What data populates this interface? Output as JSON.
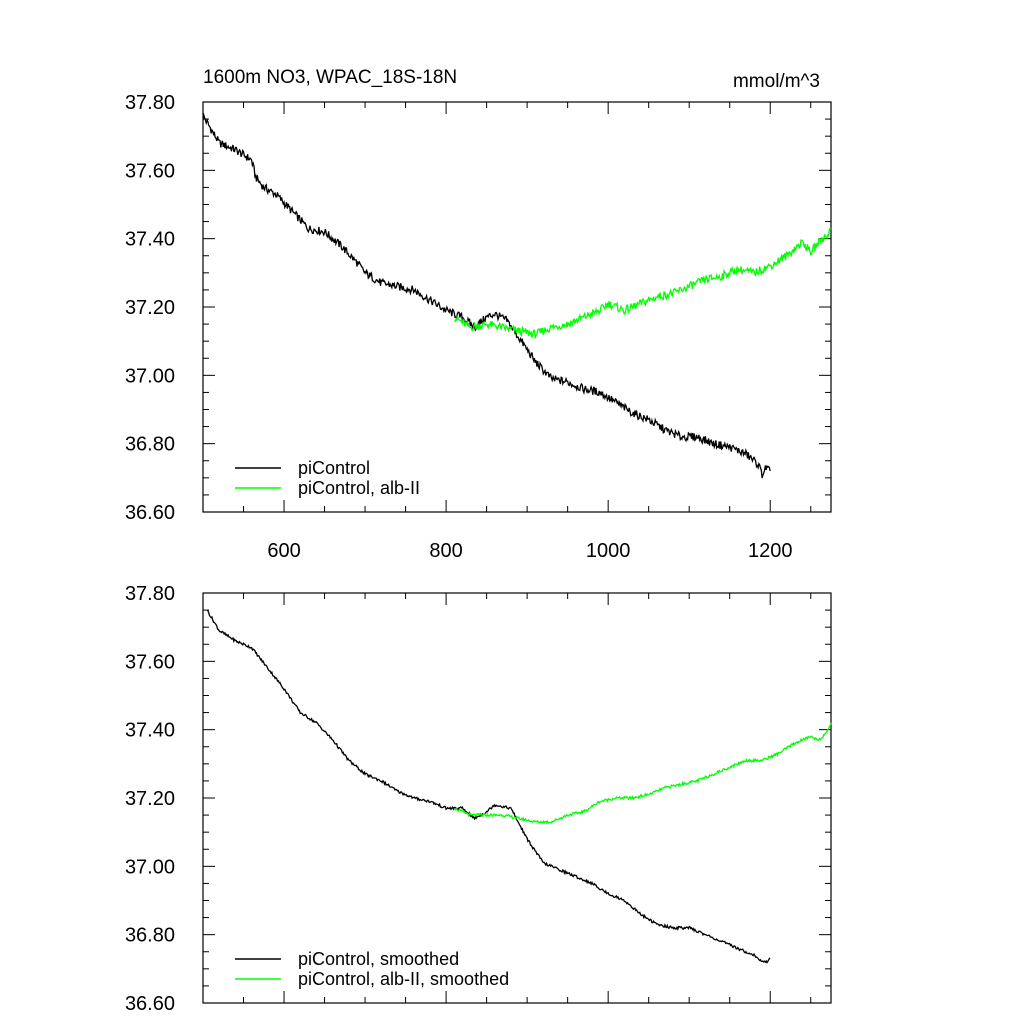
{
  "header": {
    "left_title": "1600m NO3, WPAC_18S-18N",
    "right_units": "mmol/m^3"
  },
  "colors": {
    "piControl": "#000000",
    "alb_II": "#00ff00"
  },
  "chart_data": [
    {
      "type": "line",
      "panel": "top",
      "xlim": [
        500,
        1275
      ],
      "ylim": [
        36.6,
        37.8
      ],
      "x_ticks": [
        600,
        800,
        1000,
        1200
      ],
      "x_tick_labels": [
        "600",
        "800",
        "1000",
        "1200"
      ],
      "y_ticks": [
        36.6,
        36.8,
        37.0,
        37.2,
        37.4,
        37.6,
        37.8
      ],
      "y_tick_labels": [
        "36.60",
        "36.80",
        "37.00",
        "37.20",
        "37.40",
        "37.60",
        "37.80"
      ],
      "legend_placement": "bottom-left",
      "series": [
        {
          "name": "piControl",
          "color": "#000000",
          "x": [
            500,
            520,
            540,
            560,
            565,
            575,
            590,
            610,
            630,
            650,
            670,
            690,
            700,
            720,
            740,
            760,
            780,
            800,
            820,
            835,
            850,
            860,
            875,
            890,
            910,
            930,
            950,
            970,
            990,
            1010,
            1030,
            1050,
            1070,
            1090,
            1110,
            1130,
            1150,
            1170,
            1185,
            1190,
            1195,
            1200
          ],
          "y": [
            37.76,
            37.68,
            37.66,
            37.63,
            37.58,
            37.55,
            37.53,
            37.48,
            37.43,
            37.42,
            37.38,
            37.33,
            37.3,
            37.27,
            37.26,
            37.25,
            37.22,
            37.19,
            37.17,
            37.14,
            37.17,
            37.18,
            37.16,
            37.11,
            37.04,
            36.99,
            36.98,
            36.96,
            36.95,
            36.92,
            36.89,
            36.87,
            36.84,
            36.82,
            36.82,
            36.8,
            36.79,
            36.77,
            36.74,
            36.71,
            36.73,
            36.72
          ]
        },
        {
          "name": "piControl, alb-II",
          "color": "#00ff00",
          "x": [
            810,
            830,
            850,
            870,
            890,
            910,
            930,
            950,
            970,
            990,
            1000,
            1020,
            1040,
            1060,
            1080,
            1100,
            1120,
            1140,
            1160,
            1180,
            1200,
            1220,
            1240,
            1250,
            1260,
            1270,
            1275
          ],
          "y": [
            37.17,
            37.14,
            37.15,
            37.14,
            37.13,
            37.12,
            37.14,
            37.15,
            37.17,
            37.19,
            37.21,
            37.19,
            37.21,
            37.23,
            37.24,
            37.26,
            37.28,
            37.29,
            37.31,
            37.3,
            37.32,
            37.35,
            37.39,
            37.36,
            37.39,
            37.41,
            37.43
          ]
        }
      ]
    },
    {
      "type": "line",
      "panel": "bottom",
      "xlim": [
        500,
        1275
      ],
      "ylim": [
        36.6,
        37.8
      ],
      "x_ticks": [
        600,
        800,
        1000,
        1200
      ],
      "y_ticks": [
        36.6,
        36.8,
        37.0,
        37.2,
        37.4,
        37.6,
        37.8
      ],
      "y_tick_labels": [
        "36.60",
        "36.80",
        "37.00",
        "37.20",
        "37.40",
        "37.60",
        "37.80"
      ],
      "legend_placement": "bottom-left",
      "series": [
        {
          "name": "piControl, smoothed",
          "color": "#000000",
          "x": [
            505,
            520,
            540,
            560,
            580,
            590,
            600,
            620,
            640,
            660,
            680,
            700,
            720,
            740,
            760,
            780,
            800,
            820,
            835,
            850,
            860,
            880,
            900,
            920,
            940,
            960,
            980,
            1000,
            1020,
            1040,
            1060,
            1080,
            1100,
            1120,
            1140,
            1160,
            1180,
            1190,
            1195,
            1200
          ],
          "y": [
            37.75,
            37.69,
            37.66,
            37.64,
            37.58,
            37.55,
            37.52,
            37.45,
            37.42,
            37.37,
            37.31,
            37.27,
            37.25,
            37.22,
            37.2,
            37.19,
            37.17,
            37.17,
            37.14,
            37.16,
            37.18,
            37.17,
            37.08,
            37.01,
            36.99,
            36.97,
            36.95,
            36.92,
            36.9,
            36.86,
            36.83,
            36.82,
            36.82,
            36.8,
            36.78,
            36.76,
            36.74,
            36.72,
            36.72,
            36.73
          ]
        },
        {
          "name": "piControl, alb-II, smoothed",
          "color": "#00ff00",
          "x": [
            810,
            830,
            850,
            870,
            890,
            910,
            930,
            950,
            970,
            990,
            1010,
            1030,
            1050,
            1070,
            1090,
            1110,
            1130,
            1150,
            1170,
            1190,
            1210,
            1230,
            1250,
            1260,
            1270,
            1275
          ],
          "y": [
            37.17,
            37.15,
            37.15,
            37.15,
            37.14,
            37.13,
            37.13,
            37.15,
            37.16,
            37.19,
            37.2,
            37.2,
            37.21,
            37.23,
            37.24,
            37.25,
            37.27,
            37.29,
            37.31,
            37.31,
            37.33,
            37.36,
            37.38,
            37.37,
            37.39,
            37.42
          ]
        }
      ]
    }
  ]
}
